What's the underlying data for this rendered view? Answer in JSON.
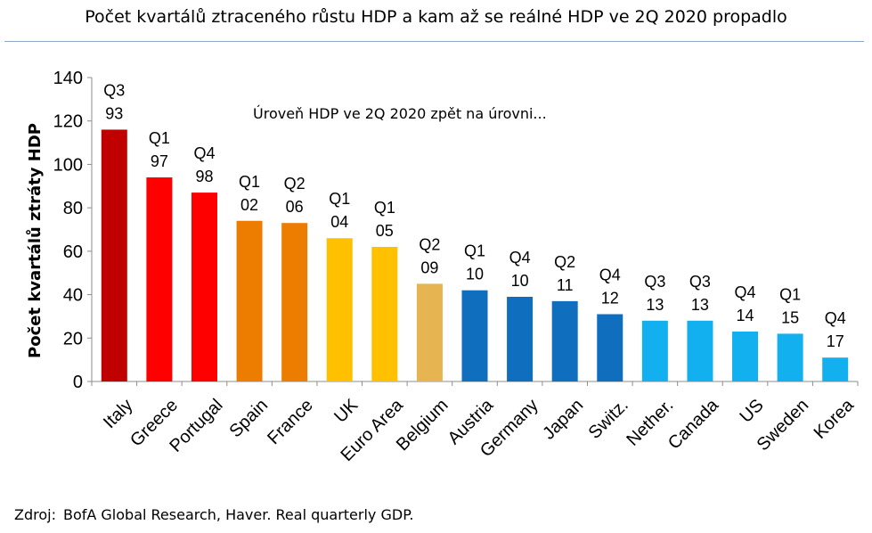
{
  "chart_data": {
    "type": "bar",
    "title": "Počet kvartálů ztraceného růstu HDP a kam až se reálné HDP ve 2Q 2020 propadlo",
    "ylabel": "Počet kvartálů ztráty HDP",
    "annotation": "Úroveň HDP ve 2Q 2020 zpět na úrovni...",
    "ylim": [
      0,
      140
    ],
    "yticks": [
      "0",
      "20",
      "40",
      "60",
      "80",
      "100",
      "120",
      "140"
    ],
    "grid": false,
    "categories": [
      "Italy",
      "Greece",
      "Portugal",
      "Spain",
      "France",
      "UK",
      "Euro Area",
      "Belgium",
      "Austria",
      "Germany",
      "Japan",
      "Switz.",
      "Nether.",
      "Canada",
      "US",
      "Sweden",
      "Korea"
    ],
    "values": [
      116,
      94,
      87,
      74,
      73,
      66,
      62,
      45,
      42,
      39,
      37,
      31,
      28,
      28,
      23,
      22,
      11
    ],
    "labels_quarter": [
      "Q3",
      "Q1",
      "Q4",
      "Q1",
      "Q2",
      "Q1",
      "Q1",
      "Q2",
      "Q1",
      "Q4",
      "Q2",
      "Q4",
      "Q3",
      "Q3",
      "Q4",
      "Q1",
      "Q4"
    ],
    "labels_year": [
      "93",
      "97",
      "98",
      "02",
      "06",
      "04",
      "05",
      "09",
      "10",
      "10",
      "11",
      "12",
      "13",
      "13",
      "14",
      "15",
      "17"
    ],
    "colors": [
      "#c00000",
      "#ff0000",
      "#ff0000",
      "#ed7d00",
      "#ed7d00",
      "#ffc000",
      "#ffc000",
      "#e6b450",
      "#0f6ebe",
      "#0f6ebe",
      "#0f6ebe",
      "#0f6ebe",
      "#12b0ee",
      "#12b0ee",
      "#12b0ee",
      "#12b0ee",
      "#12b0ee"
    ]
  },
  "source": {
    "label": "Zdroj:",
    "text": "BofA Global Research, Haver. Real quarterly GDP."
  }
}
